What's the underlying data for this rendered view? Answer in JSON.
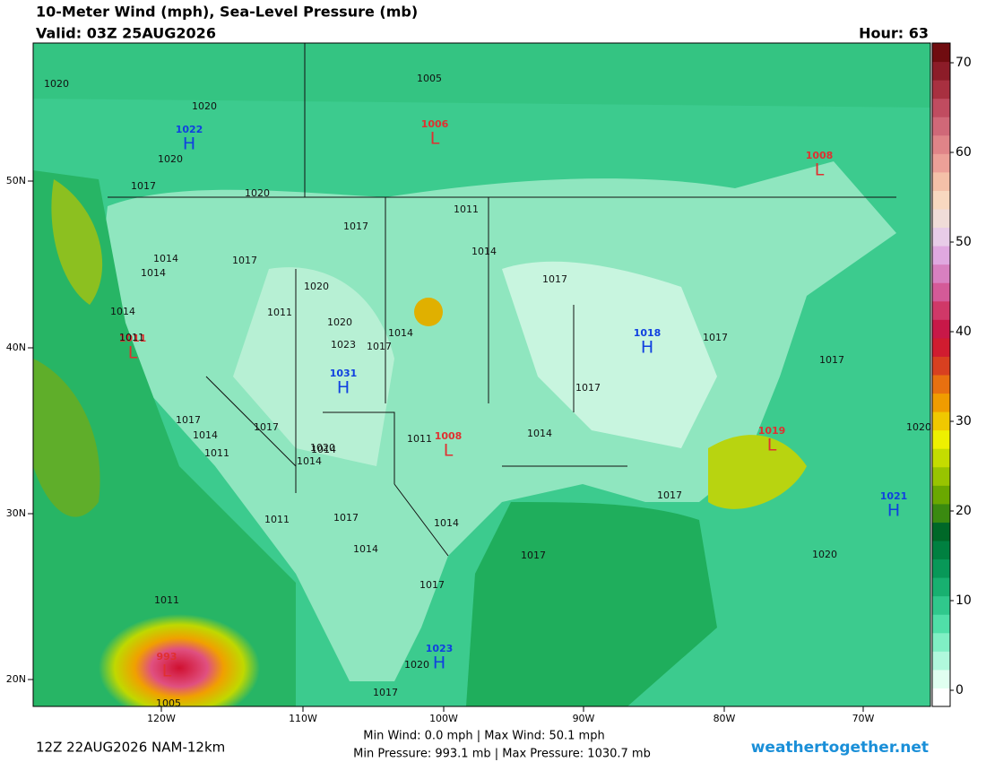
{
  "header": {
    "title": "10-Meter Wind (mph), Sea-Level Pressure (mb)",
    "valid": "Valid: 03Z 25AUG2026",
    "hour": "Hour: 63"
  },
  "colorbar": {
    "ticks": [
      0,
      10,
      20,
      30,
      40,
      50,
      60,
      70
    ]
  },
  "axes": {
    "lon_labels": [
      "120W",
      "110W",
      "100W",
      "90W",
      "80W",
      "70W"
    ],
    "lat_labels": [
      "50N",
      "40N",
      "30N",
      "20N"
    ]
  },
  "pressure_centers": [
    {
      "type": "H",
      "value": "1022"
    },
    {
      "type": "L",
      "value": "1006"
    },
    {
      "type": "L",
      "value": "1008"
    },
    {
      "type": "L",
      "value": "1011"
    },
    {
      "type": "H",
      "value": "1018"
    },
    {
      "type": "H",
      "value": "1031"
    },
    {
      "type": "L",
      "value": "1008"
    },
    {
      "type": "L",
      "value": "1019"
    },
    {
      "type": "H",
      "value": "1021"
    },
    {
      "type": "H",
      "value": "1023"
    },
    {
      "type": "L",
      "value": "993"
    }
  ],
  "isobar_labels": [
    "1020",
    "1020",
    "1020",
    "1017",
    "1020",
    "1005",
    "1011",
    "1011",
    "1017",
    "1014",
    "1014",
    "1017",
    "1014",
    "1017",
    "1020",
    "1020",
    "1023",
    "1017",
    "1014",
    "1017",
    "1017",
    "1017",
    "1014",
    "1011",
    "1020",
    "1014",
    "1017",
    "1011",
    "1014",
    "1011",
    "1017",
    "1014",
    "1014",
    "1017",
    "1017",
    "1014",
    "1011",
    "1020",
    "1020",
    "1014",
    "1011",
    "1017",
    "1020",
    "1017",
    "1017",
    "1005"
  ],
  "footer": {
    "run": "12Z 22AUG2026 NAM-12km",
    "wind": "Min Wind:   0.0 mph | Max Wind:  50.1 mph",
    "pressure": "Min Pressure: 993.1 mb | Max Pressure: 1030.7 mb",
    "site": "weathertogether.net"
  }
}
